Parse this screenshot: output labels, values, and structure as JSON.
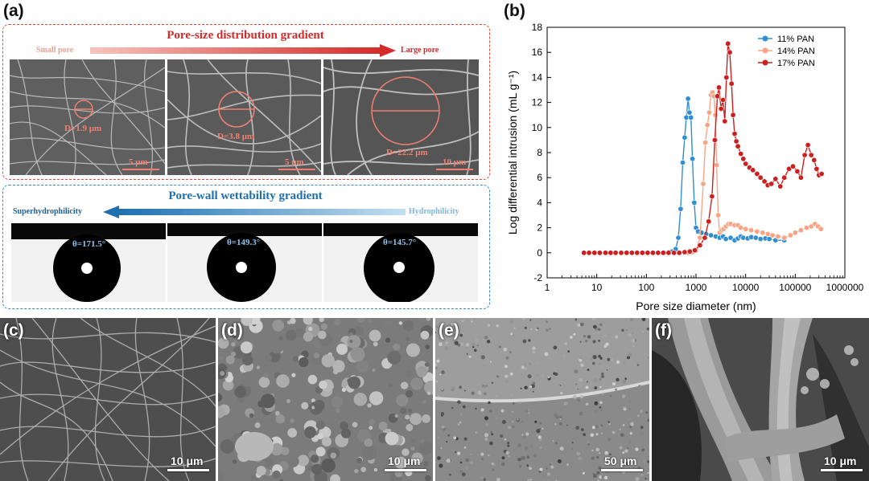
{
  "panel_a": {
    "letter": "(a)",
    "pore_size_title": "Pore-size distribution gradient",
    "small_pore": "Small pore",
    "large_pore": "Large pore",
    "images": [
      {
        "diameter": "D=1.9 μm",
        "scale": "5 μm"
      },
      {
        "diameter": "D=3.8 μm",
        "scale": "5 μm"
      },
      {
        "diameter": "D=22.2 μm",
        "scale": "10 μm"
      }
    ],
    "wettability_title": "Pore-wall wettability gradient",
    "superhydrophilicity": "Superhydrophilicity",
    "hydrophilicity": "Hydrophilicity",
    "contact_angles": [
      "θ=171.5°",
      "θ=149.3°",
      "θ=145.7°"
    ],
    "colors": {
      "red": "#d42a2a",
      "blue": "#1e6fb0",
      "light_red": "#f3a9a0",
      "light_blue": "#a9cfe8"
    }
  },
  "panel_b": {
    "letter": "(b)"
  },
  "chart_data": {
    "type": "line",
    "xlabel": "Pore size diameter (nm)",
    "ylabel": "Log differential intrusion (mL g⁻¹)",
    "x_scale": "log",
    "xlim": [
      1,
      1000000
    ],
    "ylim": [
      -2,
      18
    ],
    "x_ticks": [
      "1",
      "10",
      "100",
      "1000",
      "10000",
      "100000",
      "1000000"
    ],
    "y_ticks": [
      "-2",
      "0",
      "2",
      "4",
      "6",
      "8",
      "10",
      "12",
      "14",
      "16",
      "18"
    ],
    "legend_position": "top-right",
    "series": [
      {
        "name": "11% PAN",
        "color": "#2f8fd0",
        "x": [
          5.5,
          7,
          9,
          11.5,
          15,
          19,
          24,
          31,
          40,
          51,
          65,
          83,
          106,
          135,
          172,
          220,
          280,
          330,
          390,
          440,
          490,
          540,
          590,
          640,
          690,
          740,
          790,
          850,
          920,
          1000,
          1100,
          1300,
          1600,
          2000,
          2500,
          3000,
          3500,
          4000,
          5000,
          6000,
          7000,
          8000,
          9000,
          11000,
          13000,
          16000,
          20000,
          25000,
          30000,
          40000,
          60000
        ],
        "y": [
          0,
          0,
          0,
          0,
          0,
          0,
          0,
          0,
          0,
          0,
          0,
          0,
          0,
          0,
          0,
          0,
          0.05,
          0.1,
          0.3,
          1.2,
          3.5,
          7.2,
          9.2,
          10.8,
          12.3,
          11.2,
          10.8,
          7.5,
          4,
          2,
          1.7,
          1.6,
          1.5,
          1.4,
          1.3,
          1.2,
          1.3,
          1.1,
          1.2,
          1.0,
          1.15,
          1.3,
          1.2,
          1.15,
          1.25,
          1.2,
          1.1,
          1.15,
          1.1,
          1.0,
          1.0
        ]
      },
      {
        "name": "14% PAN",
        "color": "#f5a585",
        "x": [
          700,
          850,
          1000,
          1200,
          1400,
          1550,
          1700,
          1850,
          2000,
          2150,
          2300,
          2450,
          2600,
          2800,
          3000,
          3300,
          3600,
          4000,
          4500,
          5000,
          6000,
          7000,
          8000,
          10000,
          13000,
          17000,
          22000,
          28000,
          35000,
          45000,
          60000,
          80000,
          100000,
          130000,
          170000,
          210000,
          250000,
          290000,
          330000
        ],
        "y": [
          0,
          0.05,
          0.2,
          1.2,
          5.5,
          8.8,
          10.2,
          11.2,
          12.6,
          12.8,
          12.5,
          11,
          7,
          3,
          1.6,
          1.8,
          1.9,
          2.1,
          2.3,
          2.3,
          2.2,
          2.2,
          2.0,
          1.9,
          1.8,
          1.7,
          1.6,
          1.5,
          1.4,
          1.3,
          1.2,
          1.4,
          1.6,
          1.8,
          2.0,
          2.1,
          2.3,
          2.1,
          1.9
        ]
      },
      {
        "name": "17% PAN",
        "color": "#cc2020",
        "x": [
          5.5,
          7,
          9,
          11.5,
          15,
          19,
          24,
          31,
          40,
          51,
          65,
          83,
          106,
          135,
          172,
          220,
          280,
          360,
          460,
          590,
          750,
          950,
          1200,
          1500,
          1800,
          2100,
          2400,
          2700,
          2900,
          3200,
          3500,
          3800,
          4100,
          4400,
          4800,
          5200,
          5600,
          6000,
          6500,
          7000,
          8000,
          9000,
          10000,
          12000,
          14000,
          17000,
          20000,
          24000,
          28000,
          33000,
          40000,
          50000,
          60000,
          75000,
          90000,
          110000,
          130000,
          155000,
          180000,
          210000,
          240000,
          270000,
          300000,
          340000
        ],
        "y": [
          0,
          0,
          0,
          0,
          0,
          0,
          0,
          0,
          0,
          0,
          0,
          0,
          0,
          0,
          0,
          0,
          0,
          0,
          0,
          0.05,
          0.1,
          0.2,
          0.6,
          1.2,
          2.5,
          4.5,
          9,
          12.5,
          13.2,
          11.5,
          12.2,
          10.5,
          14.0,
          16.7,
          16.0,
          13.5,
          11,
          9.5,
          8.9,
          8.5,
          7.9,
          7.5,
          7.1,
          6.8,
          6.6,
          6.3,
          6.0,
          5.7,
          5.4,
          5.5,
          5.9,
          5.3,
          6.0,
          6.7,
          6.9,
          6.5,
          6.0,
          7.8,
          8.6,
          7.8,
          7.4,
          6.7,
          6.2,
          6.3
        ]
      }
    ]
  },
  "panels_cf": [
    {
      "letter": "(c)",
      "scale": "10 μm"
    },
    {
      "letter": "(d)",
      "scale": "10 μm"
    },
    {
      "letter": "(e)",
      "scale": "50 μm"
    },
    {
      "letter": "(f)",
      "scale": "10 μm"
    }
  ]
}
